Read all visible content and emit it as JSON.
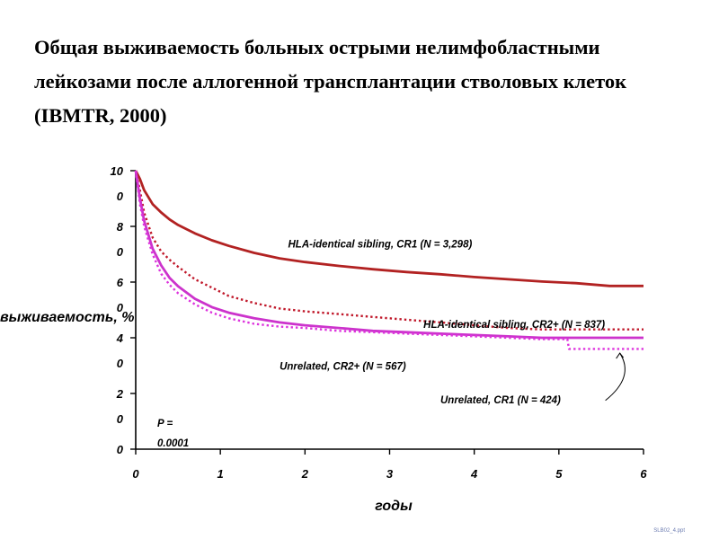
{
  "title": "Общая выживаемость больных острыми нелимфобластными лейкозами после аллогенной трансплантации стволовых клеток (IBMTR, 2000)",
  "footer": "SLB02_4.ppt",
  "chart_data": {
    "type": "line",
    "xlabel": "годы",
    "ylabel": "выживаемость, %",
    "xlim": [
      0,
      6
    ],
    "ylim": [
      0,
      100
    ],
    "x_ticks": [
      "0",
      "1",
      "2",
      "3",
      "4",
      "5",
      "6"
    ],
    "y_ticks": [
      {
        "value": 0,
        "lines": [
          "0"
        ]
      },
      {
        "value": 20,
        "lines": [
          "2",
          "0"
        ]
      },
      {
        "value": 40,
        "lines": [
          "4",
          "0"
        ]
      },
      {
        "value": 60,
        "lines": [
          "6",
          "0"
        ]
      },
      {
        "value": 80,
        "lines": [
          "8",
          "0"
        ]
      },
      {
        "value": 100,
        "lines": [
          "10",
          "0"
        ]
      }
    ],
    "pvalue_lines": [
      "P =",
      "0.0001"
    ],
    "grid": false,
    "series": [
      {
        "name": "HLA-identical sibling, CR1 (N = 3,298)",
        "color": "#b22222",
        "style": "solid",
        "label_at": [
          1.8,
          72.5
        ],
        "points": [
          [
            0,
            100
          ],
          [
            0.05,
            97
          ],
          [
            0.1,
            93
          ],
          [
            0.2,
            88
          ],
          [
            0.3,
            85
          ],
          [
            0.4,
            82.5
          ],
          [
            0.5,
            80.5
          ],
          [
            0.7,
            77.5
          ],
          [
            0.9,
            75
          ],
          [
            1.1,
            73
          ],
          [
            1.4,
            70.5
          ],
          [
            1.7,
            68.5
          ],
          [
            2.0,
            67.2
          ],
          [
            2.4,
            65.8
          ],
          [
            2.8,
            64.6
          ],
          [
            3.2,
            63.6
          ],
          [
            3.6,
            62.8
          ],
          [
            4.0,
            61.8
          ],
          [
            4.4,
            61
          ],
          [
            4.8,
            60.2
          ],
          [
            5.2,
            59.6
          ],
          [
            5.6,
            58.6
          ],
          [
            6.0,
            58.6
          ]
        ]
      },
      {
        "name": "HLA-identical sibling, CR2+ (N = 837)",
        "color": "#c0182a",
        "style": "dotted",
        "label_at": [
          3.4,
          43.5
        ],
        "points": [
          [
            0,
            100
          ],
          [
            0.05,
            93
          ],
          [
            0.1,
            85
          ],
          [
            0.2,
            76
          ],
          [
            0.3,
            71
          ],
          [
            0.4,
            68
          ],
          [
            0.5,
            65.5
          ],
          [
            0.7,
            61
          ],
          [
            0.9,
            58
          ],
          [
            1.1,
            55
          ],
          [
            1.4,
            52.5
          ],
          [
            1.7,
            50.5
          ],
          [
            2.0,
            49.5
          ],
          [
            2.4,
            48.5
          ],
          [
            2.8,
            47.5
          ],
          [
            3.2,
            46.5
          ],
          [
            3.6,
            45.5
          ],
          [
            4.0,
            44.5
          ],
          [
            4.4,
            43.5
          ],
          [
            4.8,
            43
          ],
          [
            5.2,
            43
          ],
          [
            5.6,
            43
          ],
          [
            6.0,
            43
          ]
        ]
      },
      {
        "name": "Unrelated, CR2+ (N = 567)",
        "color": "#cc33cc",
        "style": "solid",
        "label_at": [
          1.7,
          28.5
        ],
        "points": [
          [
            0,
            100
          ],
          [
            0.05,
            90
          ],
          [
            0.1,
            82
          ],
          [
            0.2,
            72
          ],
          [
            0.3,
            66
          ],
          [
            0.4,
            61.5
          ],
          [
            0.5,
            58.5
          ],
          [
            0.7,
            54
          ],
          [
            0.9,
            51
          ],
          [
            1.1,
            49
          ],
          [
            1.4,
            47
          ],
          [
            1.7,
            45.5
          ],
          [
            2.0,
            44.5
          ],
          [
            2.4,
            43.5
          ],
          [
            2.8,
            42.5
          ],
          [
            3.2,
            42
          ],
          [
            3.6,
            41.5
          ],
          [
            4.0,
            41
          ],
          [
            4.4,
            40.5
          ],
          [
            4.8,
            40
          ],
          [
            5.2,
            40
          ],
          [
            5.6,
            40
          ],
          [
            6.0,
            40
          ]
        ]
      },
      {
        "name": "Unrelated, CR1 (N = 424)",
        "color": "#dd33dd",
        "style": "dotted",
        "label_at": [
          3.6,
          16.5
        ],
        "points": [
          [
            0,
            100
          ],
          [
            0.05,
            88
          ],
          [
            0.1,
            80
          ],
          [
            0.2,
            70
          ],
          [
            0.3,
            63
          ],
          [
            0.4,
            59
          ],
          [
            0.5,
            56
          ],
          [
            0.7,
            52
          ],
          [
            0.9,
            49
          ],
          [
            1.1,
            47
          ],
          [
            1.4,
            45
          ],
          [
            1.7,
            44
          ],
          [
            2.0,
            43.5
          ],
          [
            2.4,
            42.5
          ],
          [
            2.8,
            42
          ],
          [
            3.2,
            41.5
          ],
          [
            3.6,
            41
          ],
          [
            4.0,
            40.5
          ],
          [
            4.4,
            40
          ],
          [
            4.8,
            39.5
          ],
          [
            5.1,
            39.5
          ],
          [
            5.12,
            36
          ],
          [
            5.6,
            36
          ],
          [
            6.0,
            36
          ]
        ]
      }
    ]
  }
}
